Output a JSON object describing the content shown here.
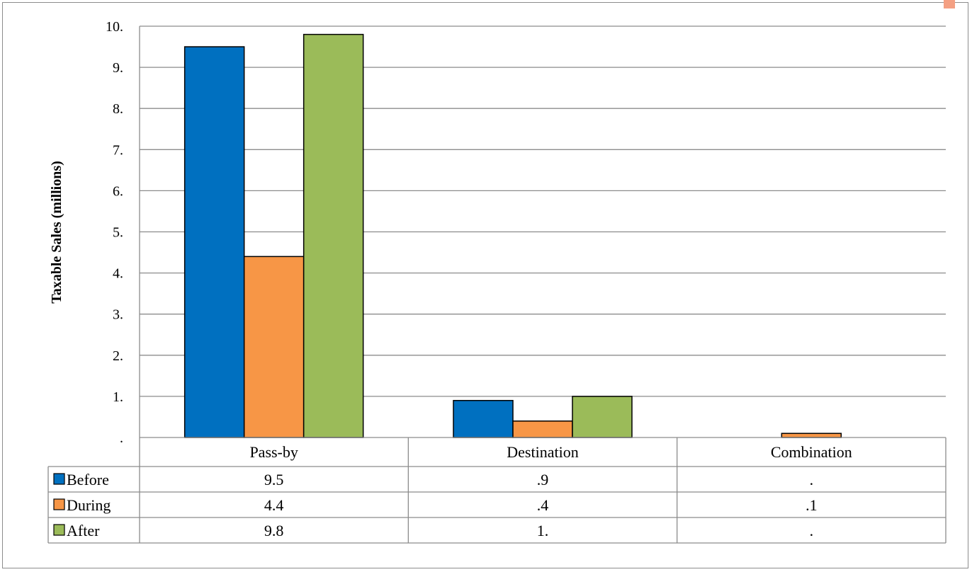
{
  "chart_data": {
    "type": "bar",
    "ylabel": "Taxable Sales (millions)",
    "xlabel": "",
    "ylim": [
      0,
      10
    ],
    "y_ticks": [
      ".",
      "1.",
      "2.",
      "3.",
      "4.",
      "5.",
      "6.",
      "7.",
      "8.",
      "9.",
      "10."
    ],
    "grid": true,
    "legend": "data table",
    "categories": [
      "Pass-by",
      "Destination",
      "Combination"
    ],
    "series": [
      {
        "name": "Before",
        "color": "#0070c0",
        "values": [
          9.5,
          0.9,
          0.0
        ],
        "labels": [
          "9.5",
          ".9",
          "."
        ]
      },
      {
        "name": "During",
        "color": "#f79646",
        "values": [
          4.4,
          0.4,
          0.1
        ],
        "labels": [
          "4.4",
          ".4",
          ".1"
        ]
      },
      {
        "name": "After",
        "color": "#9bbb59",
        "values": [
          9.8,
          1.0,
          0.0
        ],
        "labels": [
          "9.8",
          "1.",
          "."
        ]
      }
    ]
  }
}
